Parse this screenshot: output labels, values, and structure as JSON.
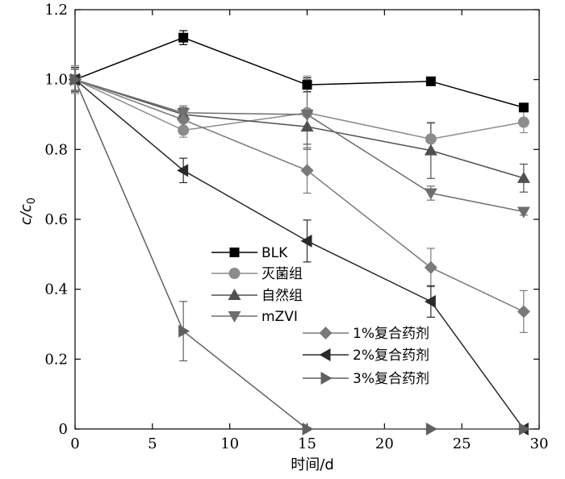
{
  "chart_data": {
    "type": "line",
    "xlabel": "时间/d",
    "ylabel_main": "c",
    "ylabel_sep": "/c",
    "ylabel_sub": "0",
    "xlim": [
      0,
      30
    ],
    "ylim": [
      0,
      1.2
    ],
    "xticks": [
      0,
      5,
      10,
      15,
      20,
      25,
      30
    ],
    "xtick_labels": [
      "0",
      "5",
      "10",
      "15",
      "20",
      "25",
      "30"
    ],
    "yticks": [
      0,
      0.2,
      0.4,
      0.6,
      0.8,
      1.0,
      1.2
    ],
    "ytick_labels": [
      "0",
      "0.2",
      "0.4",
      "0.6",
      "0.8",
      "1.0",
      "1.2"
    ],
    "grid": false,
    "series": [
      {
        "name": "BLK",
        "marker": "square",
        "color": "#000000",
        "x": [
          0,
          7,
          15,
          23,
          29
        ],
        "y": [
          1.0,
          1.12,
          0.985,
          0.995,
          0.92
        ],
        "err": [
          0.035,
          0.02,
          0.02,
          0.01,
          0.01
        ]
      },
      {
        "name": "灭菌组",
        "marker": "circle",
        "color": "#8c8c8c",
        "x": [
          0,
          7,
          15,
          23,
          29
        ],
        "y": [
          1.0,
          0.855,
          0.905,
          0.83,
          0.878
        ],
        "err": [
          0.04,
          0.02,
          0.105,
          0.045,
          0.03
        ]
      },
      {
        "name": "自然组",
        "marker": "triangle-up",
        "color": "#505050",
        "x": [
          0,
          7,
          15,
          23,
          29
        ],
        "y": [
          1.0,
          0.9,
          0.865,
          0.797,
          0.718
        ],
        "err": [
          0.03,
          0.02,
          0.05,
          0.08,
          0.04
        ]
      },
      {
        "name": "mZVI",
        "marker": "triangle-down",
        "color": "#6e6e6e",
        "x": [
          0,
          7,
          15,
          23,
          29
        ],
        "y": [
          1.0,
          0.905,
          0.9,
          0.675,
          0.622
        ],
        "err": [
          0.03,
          0.015,
          0.1,
          0.02,
          0.01
        ]
      },
      {
        "name": "1%复合药剂",
        "marker": "diamond",
        "color": "#7a7a7a",
        "x": [
          0,
          7,
          15,
          23,
          29
        ],
        "y": [
          1.0,
          0.885,
          0.74,
          0.462,
          0.336
        ],
        "err": [
          0.03,
          0.04,
          0.065,
          0.055,
          0.06
        ]
      },
      {
        "name": "2%复合药剂",
        "marker": "triangle-left",
        "color": "#2a2a2a",
        "x": [
          0,
          7,
          15,
          23,
          29
        ],
        "y": [
          1.0,
          0.74,
          0.538,
          0.365,
          0.0
        ],
        "err": [
          0.03,
          0.035,
          0.06,
          0.045,
          0.0
        ]
      },
      {
        "name": "3%复合药剂",
        "marker": "triangle-right",
        "color": "#606060",
        "x": [
          0,
          7,
          15,
          23,
          29
        ],
        "y": [
          1.0,
          0.28,
          0.0,
          0.0,
          0.0
        ],
        "err": [
          0.03,
          0.085,
          0.0,
          0.0,
          0.0
        ]
      }
    ]
  }
}
